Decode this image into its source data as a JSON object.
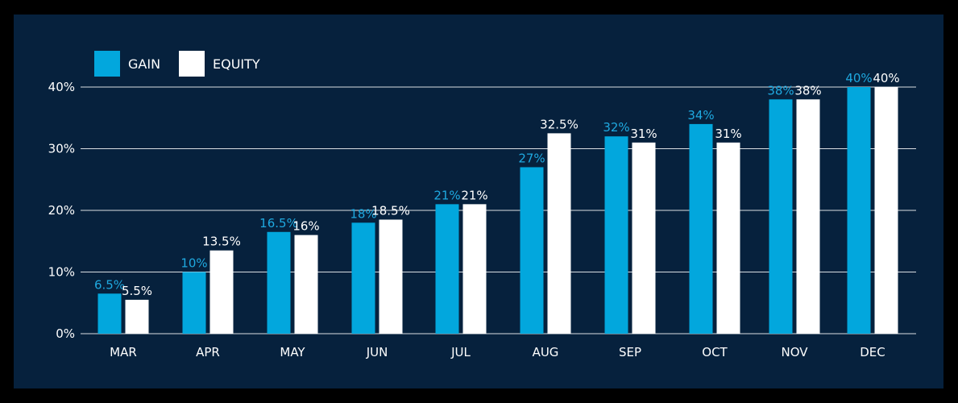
{
  "colors": {
    "background": "#06213d",
    "frame": "#000000",
    "gain": "#02a7dd",
    "equity": "#ffffff",
    "gain_label": "#1fa9e0",
    "equity_label": "#ffffff",
    "axis_text": "#ffffff",
    "grid": "#ffffff"
  },
  "legend": {
    "gain_label": "GAIN",
    "equity_label": "EQUITY"
  },
  "chart_data": {
    "type": "bar",
    "title": "",
    "xlabel": "",
    "ylabel": "",
    "ylim": [
      0,
      40
    ],
    "yticks": [
      0,
      10,
      20,
      30,
      40
    ],
    "ytick_labels": [
      "0%",
      "10%",
      "20%",
      "30%",
      "40%"
    ],
    "grid": true,
    "legend_position": "top-left",
    "categories": [
      "MAR",
      "APR",
      "MAY",
      "JUN",
      "JUL",
      "AUG",
      "SEP",
      "OCT",
      "NOV",
      "DEC"
    ],
    "series": [
      {
        "name": "GAIN",
        "values": [
          6.5,
          10,
          16.5,
          18,
          21,
          27,
          32,
          34,
          38,
          40
        ],
        "labels": [
          "6.5%",
          "10%",
          "16.5%",
          "18%",
          "21%",
          "27%",
          "32%",
          "34%",
          "38%",
          "40%"
        ]
      },
      {
        "name": "EQUITY",
        "values": [
          5.5,
          13.5,
          16,
          18.5,
          21,
          32.5,
          31,
          31,
          38,
          40
        ],
        "labels": [
          "5.5%",
          "13.5%",
          "16%",
          "18.5%",
          "21%",
          "32.5%",
          "31%",
          "31%",
          "38%",
          "40%"
        ]
      }
    ]
  }
}
